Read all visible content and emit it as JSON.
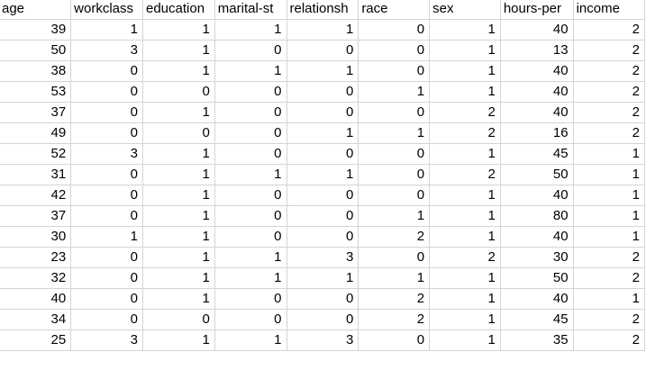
{
  "sheet": {
    "columns": [
      "age",
      "workclass",
      "education",
      "marital-st",
      "relationsh",
      "race",
      "sex",
      "hours-per",
      "income"
    ],
    "rows": [
      [
        "39",
        "1",
        "1",
        "1",
        "1",
        "0",
        "1",
        "40",
        "2"
      ],
      [
        "50",
        "3",
        "1",
        "0",
        "0",
        "0",
        "1",
        "13",
        "2"
      ],
      [
        "38",
        "0",
        "1",
        "1",
        "1",
        "0",
        "1",
        "40",
        "2"
      ],
      [
        "53",
        "0",
        "0",
        "0",
        "0",
        "1",
        "1",
        "40",
        "2"
      ],
      [
        "37",
        "0",
        "1",
        "0",
        "0",
        "0",
        "2",
        "40",
        "2"
      ],
      [
        "49",
        "0",
        "0",
        "0",
        "1",
        "1",
        "2",
        "16",
        "2"
      ],
      [
        "52",
        "3",
        "1",
        "0",
        "0",
        "0",
        "1",
        "45",
        "1"
      ],
      [
        "31",
        "0",
        "1",
        "1",
        "1",
        "0",
        "2",
        "50",
        "1"
      ],
      [
        "42",
        "0",
        "1",
        "0",
        "0",
        "0",
        "1",
        "40",
        "1"
      ],
      [
        "37",
        "0",
        "1",
        "0",
        "0",
        "1",
        "1",
        "80",
        "1"
      ],
      [
        "30",
        "1",
        "1",
        "0",
        "0",
        "2",
        "1",
        "40",
        "1"
      ],
      [
        "23",
        "0",
        "1",
        "1",
        "3",
        "0",
        "2",
        "30",
        "2"
      ],
      [
        "32",
        "0",
        "1",
        "1",
        "1",
        "1",
        "1",
        "50",
        "2"
      ],
      [
        "40",
        "0",
        "1",
        "0",
        "0",
        "2",
        "1",
        "40",
        "1"
      ],
      [
        "34",
        "0",
        "0",
        "0",
        "0",
        "2",
        "1",
        "45",
        "2"
      ],
      [
        "25",
        "3",
        "1",
        "1",
        "3",
        "0",
        "1",
        "35",
        "2"
      ]
    ]
  }
}
